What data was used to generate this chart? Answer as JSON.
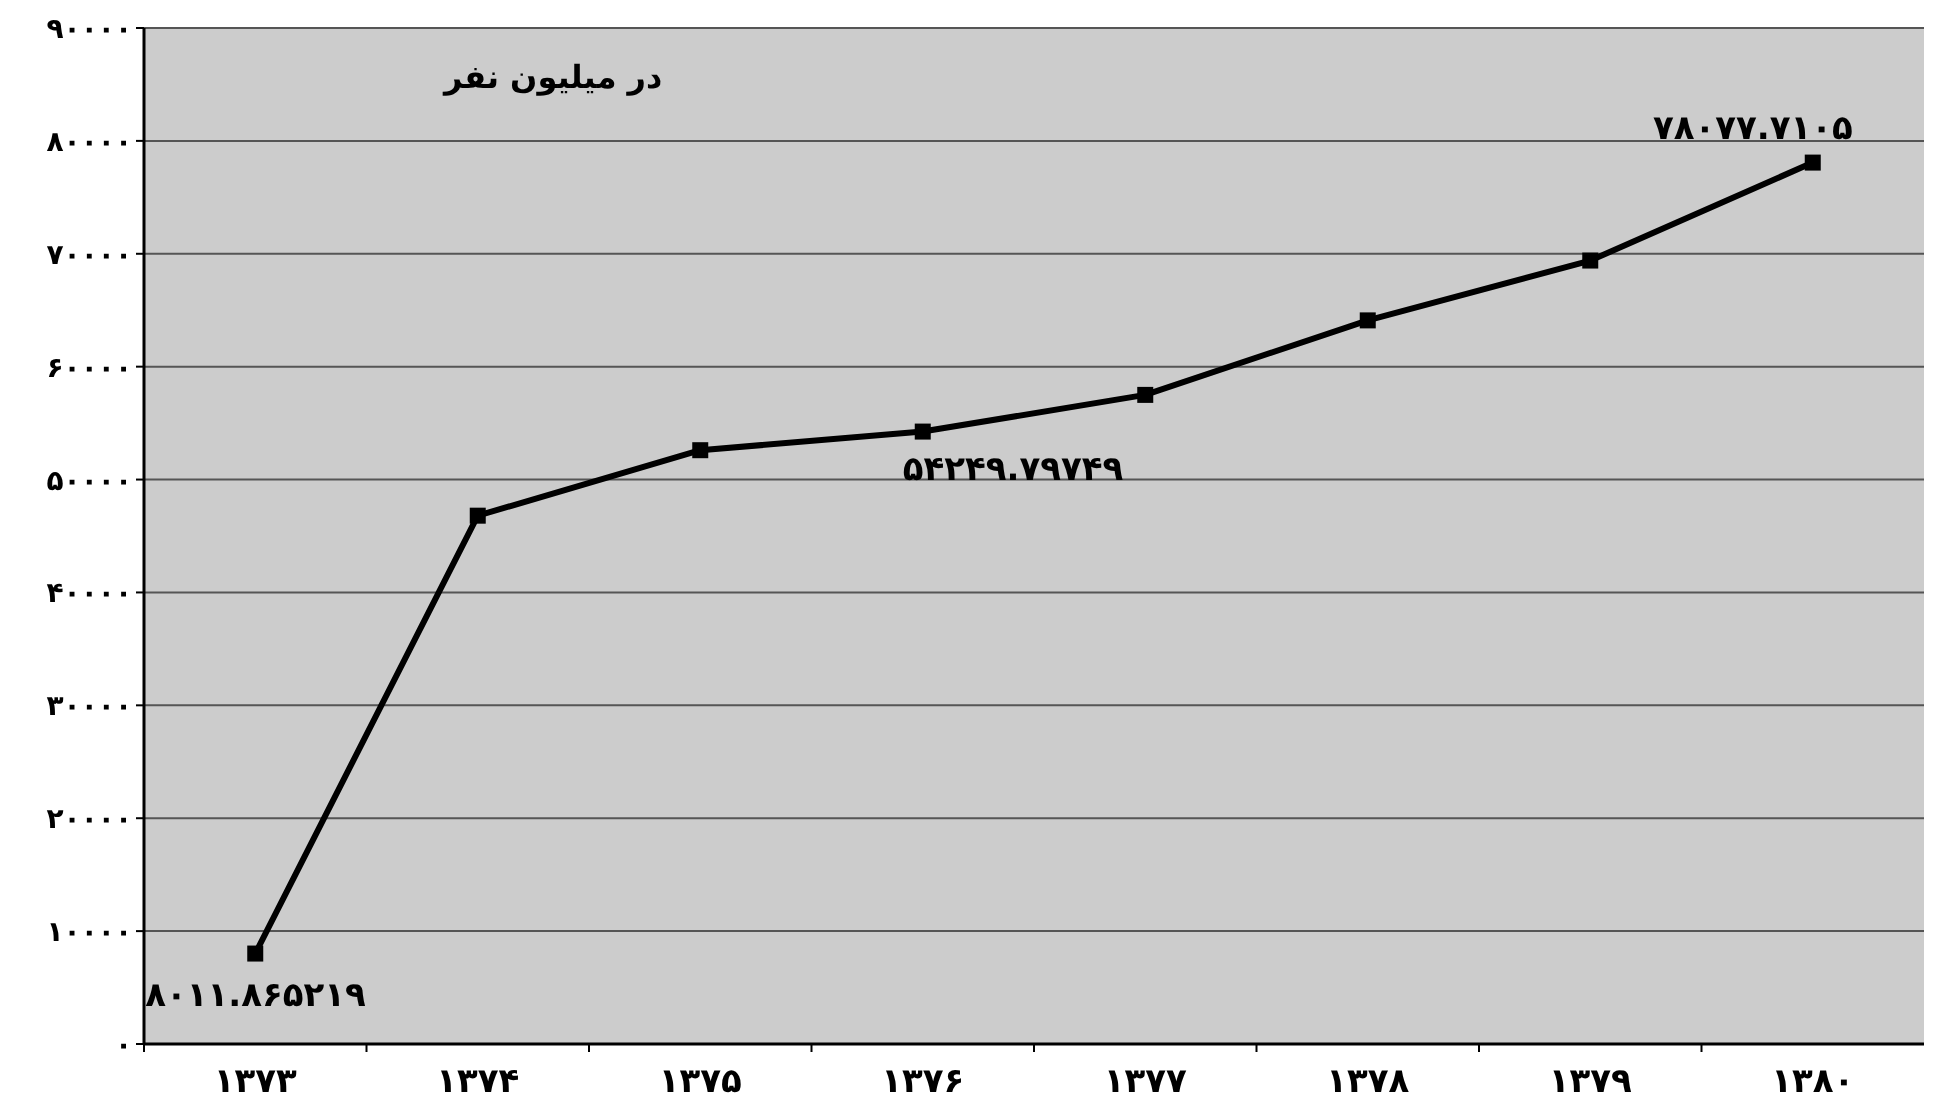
{
  "chart_data": {
    "type": "line",
    "categories": [
      "۱۳۷۳",
      "۱۳۷۴",
      "۱۳۷۵",
      "۱۳۷۶",
      "۱۳۷۷",
      "۱۳۷۸",
      "۱۳۷۹",
      "۱۳۸۰"
    ],
    "series": [
      {
        "color": "#000000",
        "values": [
          8011.865219,
          46800,
          52600,
          54249.79749,
          57500,
          64100,
          69400,
          78077.7105
        ],
        "value_labels": [
          "۸۰۱۱.۸۶۵۲۱۹",
          null,
          null,
          "۵۴۲۴۹.۷۹۷۴۹",
          null,
          null,
          null,
          "۷۸۰۷۷.۷۱۰۵"
        ]
      }
    ],
    "ylim": [
      0,
      90000
    ],
    "yticks": [
      {
        "value": 0,
        "label": "۰"
      },
      {
        "value": 10000,
        "label": "۱۰۰۰۰"
      },
      {
        "value": 20000,
        "label": "۲۰۰۰۰"
      },
      {
        "value": 30000,
        "label": "۳۰۰۰۰"
      },
      {
        "value": 40000,
        "label": "۴۰۰۰۰"
      },
      {
        "value": 50000,
        "label": "۵۰۰۰۰"
      },
      {
        "value": 60000,
        "label": "۶۰۰۰۰"
      },
      {
        "value": 70000,
        "label": "۷۰۰۰۰"
      },
      {
        "value": 80000,
        "label": "۸۰۰۰۰"
      },
      {
        "value": 90000,
        "label": "۹۰۰۰۰"
      }
    ],
    "annotations": [
      "در میلیون نفر"
    ],
    "grid": "y",
    "marker": "square",
    "line_style": "solid"
  }
}
